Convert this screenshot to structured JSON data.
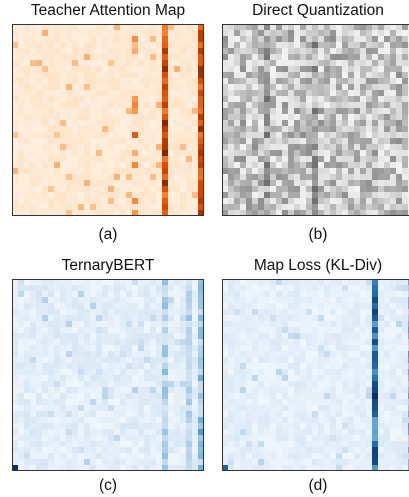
{
  "panels": [
    {
      "id": "a",
      "title": "Teacher Attention Map",
      "caption": "(a)",
      "colormap": "Oranges"
    },
    {
      "id": "b",
      "title": "Direct Quantization",
      "caption": "(b)",
      "colormap": "Greys"
    },
    {
      "id": "c",
      "title": "TernaryBERT",
      "caption": "(c)",
      "colormap": "Blues"
    },
    {
      "id": "d",
      "title": "Map Loss (KL-Div)",
      "caption": "(d)",
      "colormap": "Blues"
    }
  ],
  "colors": {
    "oranges_low": "#fff5eb",
    "oranges_high": "#7f2704",
    "greys_low": "#ffffff",
    "greys_high": "#000000",
    "blues_low": "#f7fbff",
    "blues_high": "#08306b"
  }
}
